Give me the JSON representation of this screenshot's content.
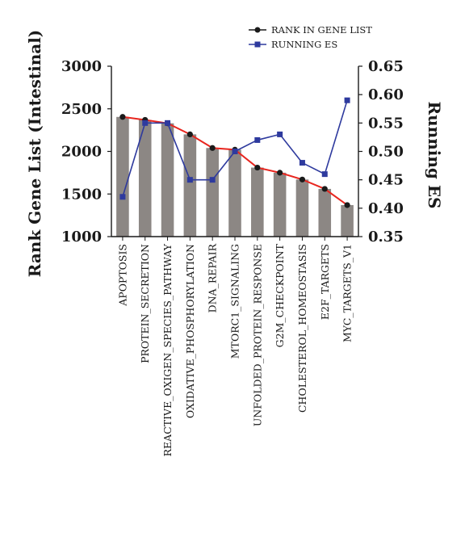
{
  "chart_data": {
    "type": "bar",
    "categories": [
      "APOPTOSIS",
      "PROTEIN_SECRETION",
      "REACTIVE_OXIGEN_SPECIES_PATHWAY",
      "OXIDATIVE_PHOSPHORYLATION",
      "DNA_REPAIR",
      "MTORC1_SIGNALING",
      "UNFOLDED_PROTEIN_RESPONSE",
      "G2M_CHECKPOINT",
      "CHOLESTEROL_HOMEOSTASIS",
      "E2F_TARGETS",
      "MYC_TARGETS_V1"
    ],
    "series": [
      {
        "name": "RANK IN GENE LIST",
        "axis": "left",
        "render": "bar+line",
        "values": [
          2405,
          2370,
          2330,
          2200,
          2040,
          2020,
          1810,
          1750,
          1670,
          1560,
          1370
        ]
      },
      {
        "name": "RUNNING ES",
        "axis": "right",
        "render": "line",
        "values": [
          0.42,
          0.55,
          0.55,
          0.45,
          0.45,
          0.5,
          0.52,
          0.53,
          0.48,
          0.46,
          0.59
        ]
      }
    ],
    "ylabel": "Rank Gene List (Intestinal)",
    "ylabel_right": "Running ES",
    "ylim": [
      1000,
      3000
    ],
    "yticks": [
      "1000",
      "1500",
      "2000",
      "2500",
      "3000"
    ],
    "ylim_right": [
      0.35,
      0.65
    ],
    "yticks_right": [
      "0.35",
      "0.40",
      "0.45",
      "0.50",
      "0.55",
      "0.60",
      "0.65"
    ],
    "grid": false,
    "legend_position": "top-right",
    "colors": {
      "bar": "#8c8784",
      "rank_line": "#e8261f",
      "rank_marker": "#1a1a1a",
      "es_line": "#2e3a9e",
      "es_marker": "#2e3a9e"
    }
  }
}
